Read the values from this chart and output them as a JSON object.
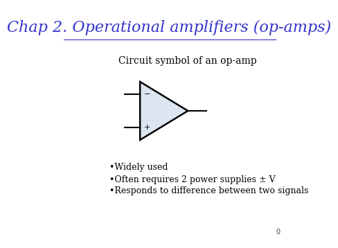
{
  "title": "Chap 2. Operational amplifiers (op-amps)",
  "title_color": "#3333CC",
  "title_fontsize": 16,
  "background_color": "#ffffff",
  "subtitle": "Circuit symbol of an op-amp",
  "subtitle_fontsize": 10,
  "bullet_points": [
    "•Widely used",
    "•Often requires 2 power supplies ± V",
    "•Responds to difference between two signals"
  ],
  "bullet_fontsize": 9,
  "page_number": "0",
  "triangle_fill": "#dce6f1",
  "triangle_edge": "#000000",
  "minus_label": "−",
  "plus_label": "+"
}
